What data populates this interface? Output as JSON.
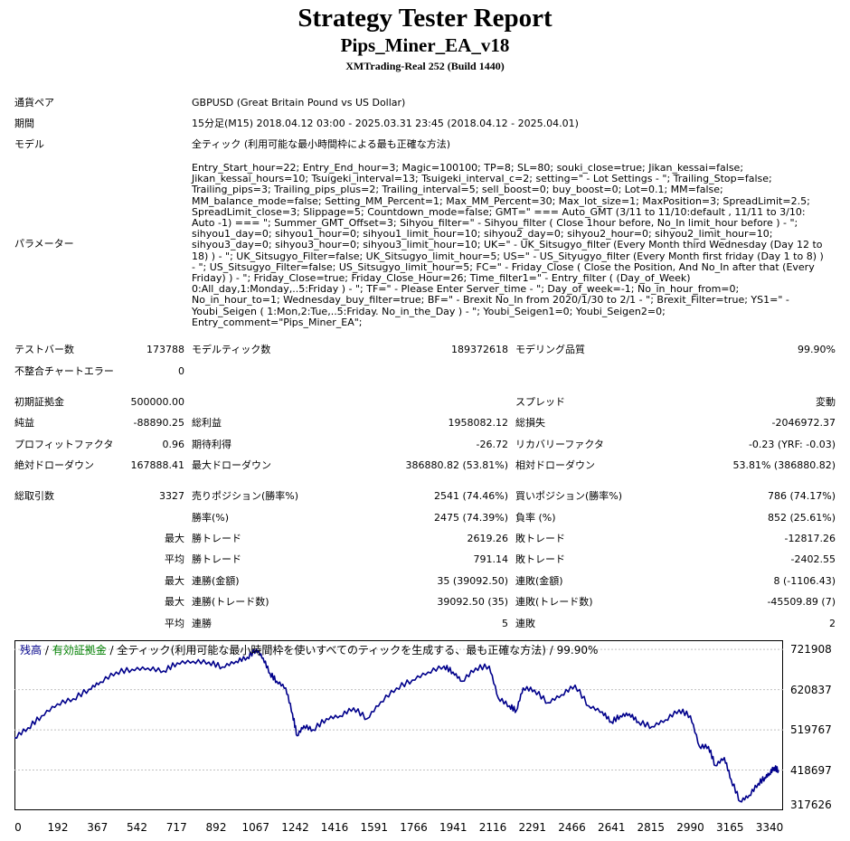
{
  "report": {
    "title": "Strategy Tester Report",
    "ea_name": "Pips_Miner_EA_v18",
    "server": "XMTrading-Real 252 (Build 1440)"
  },
  "settings": {
    "symbol_label": "通貨ペア",
    "symbol_value": "GBPUSD (Great Britain Pound vs US Dollar)",
    "period_label": "期間",
    "period_value": "15分足(M15) 2018.04.12 03:00 - 2025.03.31 23:45 (2018.04.12 - 2025.04.01)",
    "model_label": "モデル",
    "model_value": "全ティック (利用可能な最小時間枠による最も正確な方法)",
    "params_label": "パラメーター",
    "params_value": "Entry_Start_hour=22; Entry_End_hour=3; Magic=100100; TP=8; SL=80; souki_close=true; Jikan_kessai=false; Jikan_kessai_hours=10; Tsuigeki_interval=13; Tsuigeki_interval_c=2; setting=\" - Lot Settings - \"; Trailing_Stop=false; Trailing_pips=3; Trailing_pips_plus=2; Trailing_interval=5; sell_boost=0; buy_boost=0; Lot=0.1; MM=false; MM_balance_mode=false; Setting_MM_Percent=1; Max_MM_Percent=30; Max_lot_size=1; MaxPosition=3; SpreadLimit=2.5; SpreadLimit_close=3; Slippage=5; Countdown_mode=false; GMT=\" === Auto_GMT (3/11 to 11/10:default , 11/11 to 3/10: Auto -1) === \"; Summer_GMT_Offset=3; Sihyou_filter=\" - Sihyou_filter ( Close 1hour before, No_In limit_hour before ) - \"; sihyou1_day=0; sihyou1_hour=0; sihyou1_limit_hour=10; sihyou2_day=0; sihyou2_hour=0; sihyou2_limit_hour=10; sihyou3_day=0; sihyou3_hour=0; sihyou3_limit_hour=10; UK=\" - UK_Sitsugyo_filter (Every Month third Wednesday (Day 12 to 18) ) - \"; UK_Sitsugyo_Filter=false; UK_Sitsugyo_limit_hour=5; US=\" - US_Sityugyo_filter (Every Month first friday (Day 1 to 8) ) - \"; US_Sitsugyo_Filter=false; US_Sitsugyo_limit_hour=5; FC=\" - Friday_Close ( Close the Position, And No_In after that (Every Friday) ) - \"; Friday_Close=true; Friday_Close_Hour=26; Time_filter1=\" - Entry_filter ( (Day_of_Week) 0:All_day,1:Monday,..5:Friday ) - \"; TF=\" - Please Enter Server_time - \"; Day_of_week=-1; No_in_hour_from=0; No_in_hour_to=1; Wednesday_buy_filter=true; BF=\" - Brexit No_In from 2020/1/30 to 2/1 - \"; Brexit_Filter=true; YS1=\" - Youbi_Seigen ( 1:Mon,2:Tue,..5:Friday. No_in_the_Day ) - \"; Youbi_Seigen1=0; Youbi_Seigen2=0; Entry_comment=\"Pips_Miner_EA\";"
  },
  "stats": {
    "bars_label": "テストバー数",
    "bars_value": "173788",
    "ticks_label": "モデルティック数",
    "ticks_value": "189372618",
    "quality_label": "モデリング品質",
    "quality_value": "99.90%",
    "errors_label": "不整合チャートエラー",
    "errors_value": "0",
    "deposit_label": "初期証拠金",
    "deposit_value": "500000.00",
    "spread_label": "スプレッド",
    "spread_value": "変動",
    "net_label": "純益",
    "net_value": "-88890.25",
    "gross_profit_label": "総利益",
    "gross_profit_value": "1958082.12",
    "gross_loss_label": "総損失",
    "gross_loss_value": "-2046972.37",
    "pf_label": "プロフィットファクタ",
    "pf_value": "0.96",
    "expected_label": "期待利得",
    "expected_value": "-26.72",
    "recovery_label": "リカバリーファクタ",
    "recovery_value": "-0.23 (YRF: -0.03)",
    "abs_dd_label": "絶対ドローダウン",
    "abs_dd_value": "167888.41",
    "max_dd_label": "最大ドローダウン",
    "max_dd_value": "386880.82 (53.81%)",
    "rel_dd_label": "相対ドローダウン",
    "rel_dd_value": "53.81% (386880.82)",
    "trades_label": "総取引数",
    "trades_value": "3327",
    "short_label": "売りポジション(勝率%)",
    "short_value": "2541 (74.46%)",
    "long_label": "買いポジション(勝率%)",
    "long_value": "786 (74.17%)",
    "winrate_label": "勝率(%)",
    "winrate_value": "2475 (74.39%)",
    "lossrate_label": "負率 (%)",
    "lossrate_value": "852 (25.61%)",
    "max_label": "最大",
    "avg_label": "平均",
    "largest_win_label": "勝トレード",
    "largest_win_value": "2619.26",
    "largest_loss_label": "敗トレード",
    "largest_loss_value": "-12817.26",
    "avg_win_label": "勝トレード",
    "avg_win_value": "791.14",
    "avg_loss_label": "敗トレード",
    "avg_loss_value": "-2402.55",
    "cons_wins_money_label": "連勝(金額)",
    "cons_wins_money_value": "35 (39092.50)",
    "cons_losses_money_label": "連敗(金額)",
    "cons_losses_money_value": "8 (-1106.43)",
    "cons_wins_count_label": "連勝(トレード数)",
    "cons_wins_count_value": "39092.50 (35)",
    "cons_losses_count_label": "連敗(トレード数)",
    "cons_losses_count_value": "-45509.89 (7)",
    "avg_cons_wins_label": "連勝",
    "avg_cons_wins_value": "5",
    "avg_cons_losses_label": "連敗",
    "avg_cons_losses_value": "2"
  },
  "chart_legend": {
    "balance": "残高",
    "sep1": " / ",
    "equity": "有効証拠金",
    "sep2": " / ",
    "model": "全ティック(利用可能な最小時間枠を使いすべてのティックを生成する、最も正確な方法) / 99.90%"
  },
  "chart_data": {
    "type": "line",
    "title": "",
    "xlabel": "",
    "ylabel": "",
    "x_ticks": [
      "0",
      "192",
      "367",
      "542",
      "717",
      "892",
      "1067",
      "1242",
      "1416",
      "1591",
      "1766",
      "1941",
      "2116",
      "2291",
      "2466",
      "2641",
      "2815",
      "2990",
      "3165",
      "3340"
    ],
    "y_ticks": [
      "721908",
      "620837",
      "519767",
      "418697",
      "317626"
    ],
    "xlim": [
      0,
      3400
    ],
    "ylim": [
      317626,
      745000
    ],
    "colors": {
      "balance": "#00008b",
      "equity": "#008000",
      "grid": "#c0c0c0"
    },
    "series": [
      {
        "x": [
          0,
          60,
          120,
          190,
          260,
          330,
          380,
          450,
          520,
          590,
          660,
          720,
          790,
          860,
          920,
          980,
          1030,
          1070,
          1100,
          1130,
          1160,
          1200,
          1230,
          1250,
          1280,
          1320,
          1380,
          1440,
          1500,
          1560,
          1620,
          1690,
          1760,
          1830,
          1900,
          1940,
          1980,
          2040,
          2100,
          2140,
          2190,
          2220,
          2250,
          2300,
          2360,
          2420,
          2480,
          2540,
          2600,
          2640,
          2680,
          2720,
          2760,
          2820,
          2880,
          2940,
          2990,
          3030,
          3070,
          3100,
          3140,
          3170,
          3210,
          3250,
          3290,
          3320,
          3340,
          3360,
          3380
        ],
        "y": [
          500000,
          525000,
          555000,
          585000,
          598000,
          622000,
          640000,
          665000,
          672000,
          675000,
          668000,
          688000,
          692000,
          690000,
          678000,
          692000,
          702000,
          722000,
          700000,
          662000,
          642000,
          625000,
          560000,
          505000,
          530000,
          520000,
          548000,
          555000,
          575000,
          548000,
          590000,
          625000,
          645000,
          665000,
          680000,
          665000,
          642000,
          675000,
          680000,
          600000,
          580000,
          568000,
          625000,
          620000,
          588000,
          608000,
          632000,
          580000,
          565000,
          540000,
          555000,
          560000,
          540000,
          528000,
          545000,
          570000,
          555000,
          478000,
          478000,
          430000,
          450000,
          395000,
          340000,
          355000,
          385000,
          400000,
          410000,
          425000,
          418000
        ]
      }
    ]
  }
}
